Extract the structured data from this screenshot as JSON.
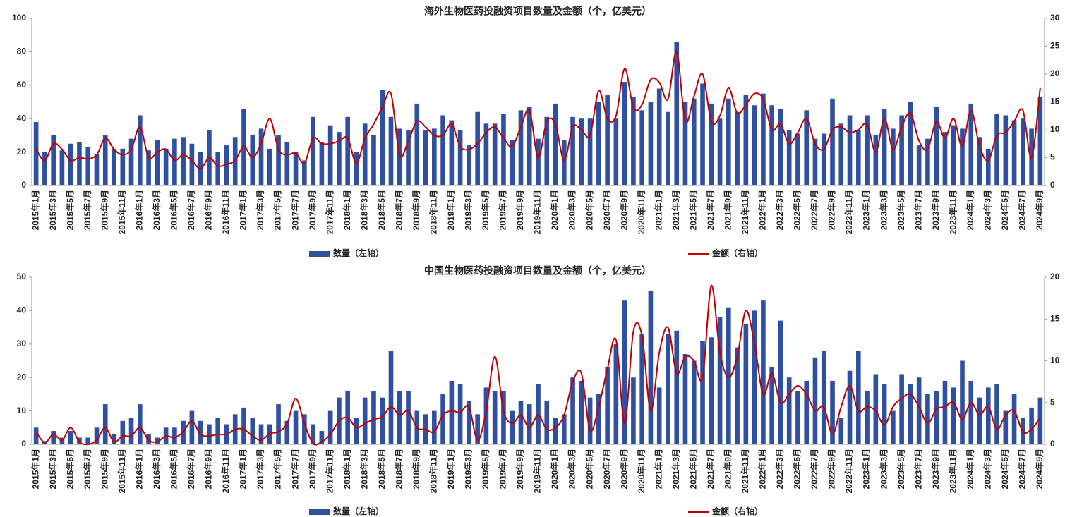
{
  "chart_data": [
    {
      "type": "bar-line",
      "title": "海外生物医药投融资项目数量及金额（个，亿美元）",
      "categories": [
        "2015年1月",
        null,
        "2015年3月",
        null,
        "2015年5月",
        null,
        "2015年7月",
        null,
        "2015年9月",
        null,
        "2015年11月",
        null,
        "2016年1月",
        null,
        "2016年3月",
        null,
        "2016年5月",
        null,
        "2016年7月",
        null,
        "2016年9月",
        null,
        "2016年11月",
        null,
        "2017年1月",
        null,
        "2017年3月",
        null,
        "2017年5月",
        null,
        "2017年7月",
        null,
        "2017年9月",
        null,
        "2017年11月",
        null,
        "2018年1月",
        null,
        "2018年3月",
        null,
        "2018年5月",
        null,
        "2018年7月",
        null,
        "2018年9月",
        null,
        "2018年11月",
        null,
        "2019年1月",
        null,
        "2019年3月",
        null,
        "2019年5月",
        null,
        "2019年7月",
        null,
        "2019年9月",
        null,
        "2019年11月",
        null,
        "2020年1月",
        null,
        "2020年3月",
        null,
        "2020年5月",
        null,
        "2020年7月",
        null,
        "2020年9月",
        null,
        "2020年11月",
        null,
        "2021年1月",
        null,
        "2021年3月",
        null,
        "2021年5月",
        null,
        "2021年7月",
        null,
        "2021年9月",
        null,
        "2021年11月",
        null,
        "2022年1月",
        null,
        "2022年3月",
        null,
        "2022年5月",
        null,
        "2022年7月",
        null,
        "2022年9月",
        null,
        "2022年11月",
        null,
        "2023年1月",
        null,
        "2023年3月",
        null,
        "2023年5月",
        null,
        "2023年7月",
        null,
        "2023年9月",
        null,
        "2023年11月",
        null,
        "2024年1月",
        null,
        "2024年3月",
        null,
        "2024年5月",
        null,
        "2024年7月",
        null,
        "2024年9月"
      ],
      "series": [
        {
          "name": "数量（左轴）",
          "type": "bar",
          "color": "#2f4fa0",
          "values": [
            38,
            20,
            30,
            21,
            25,
            26,
            23,
            19,
            30,
            22,
            22,
            28,
            42,
            21,
            27,
            22,
            28,
            29,
            25,
            20,
            33,
            20,
            24,
            29,
            46,
            30,
            34,
            22,
            30,
            26,
            20,
            15,
            41,
            26,
            36,
            32,
            41,
            20,
            37,
            30,
            57,
            41,
            34,
            33,
            49,
            33,
            34,
            42,
            39,
            33,
            24,
            44,
            37,
            37,
            43,
            27,
            45,
            47,
            28,
            41,
            49,
            27,
            41,
            40,
            40,
            50,
            54,
            40,
            62,
            53,
            45,
            50,
            58,
            44,
            86,
            50,
            52,
            61,
            49,
            40,
            52,
            44,
            54,
            48,
            55,
            48,
            46,
            33,
            31,
            45,
            28,
            31,
            52,
            37,
            42,
            33,
            42,
            30,
            46,
            34,
            42,
            50,
            24,
            28,
            47,
            32,
            36,
            34,
            49,
            29,
            22,
            43,
            42,
            39,
            40,
            34,
            53
          ]
        },
        {
          "name": "金额（右轴）",
          "type": "line",
          "axis": "y2",
          "color": "#c00000",
          "values": [
            6.5,
            4.5,
            7.5,
            6.5,
            4.5,
            5,
            4.8,
            5.5,
            8.5,
            6.5,
            5.5,
            6.5,
            10.5,
            5,
            6,
            6.5,
            4.5,
            5.5,
            4.5,
            3,
            5,
            3.5,
            3.8,
            4.5,
            7,
            5,
            7.5,
            12,
            6.5,
            5.5,
            5.8,
            4,
            8.5,
            7.5,
            7.5,
            8,
            8.5,
            4,
            8.5,
            11,
            14,
            16.5,
            5.5,
            8,
            11.5,
            10.5,
            9,
            9,
            11,
            7,
            6.5,
            7.5,
            9.5,
            10.5,
            8.5,
            7,
            10.5,
            13.5,
            5,
            11.5,
            11,
            4.5,
            10.5,
            10,
            9,
            17,
            12,
            12.5,
            21,
            14,
            14.5,
            19,
            18.5,
            15.5,
            24,
            11.5,
            16,
            20,
            11.5,
            12.5,
            17.5,
            13,
            14.5,
            16.5,
            15.5,
            10,
            11,
            7.5,
            9.5,
            12,
            7.5,
            6.5,
            10,
            10.5,
            9.5,
            10,
            11,
            6,
            12,
            6.5,
            10.5,
            13,
            8,
            6.5,
            11.5,
            8.5,
            12,
            7,
            13.5,
            7,
            4.5,
            9,
            9.5,
            11.5,
            13.5,
            5,
            17.5
          ]
        }
      ],
      "ylim": [
        0,
        100
      ],
      "yticks": [
        0,
        20,
        40,
        60,
        80,
        100
      ],
      "y2lim": [
        0,
        30
      ],
      "y2ticks": [
        0,
        5,
        10,
        15,
        20,
        25,
        30
      ]
    },
    {
      "type": "bar-line",
      "title": "中国生物医药投融资项目数量及金额（个，亿美元）",
      "categories": [
        "2015年1月",
        null,
        "2015年3月",
        null,
        "2015年5月",
        null,
        "2015年7月",
        null,
        "2015年9月",
        null,
        "2015年11月",
        null,
        "2016年1月",
        null,
        "2016年3月",
        null,
        "2016年5月",
        null,
        "2016年7月",
        null,
        "2016年9月",
        null,
        "2016年11月",
        null,
        "2017年1月",
        null,
        "2017年3月",
        null,
        "2017年5月",
        null,
        "2017年7月",
        null,
        "2017年9月",
        null,
        "2017年11月",
        null,
        "2018年1月",
        null,
        "2018年3月",
        null,
        "2018年5月",
        null,
        "2018年7月",
        null,
        "2018年9月",
        null,
        "2018年11月",
        null,
        "2019年1月",
        null,
        "2019年3月",
        null,
        "2019年5月",
        null,
        "2019年7月",
        null,
        "2019年9月",
        null,
        "2019年11月",
        null,
        "2020年1月",
        null,
        "2020年3月",
        null,
        "2020年5月",
        null,
        "2020年7月",
        null,
        "2020年9月",
        null,
        "2020年11月",
        null,
        "2021年1月",
        null,
        "2021年3月",
        null,
        "2021年5月",
        null,
        "2021年7月",
        null,
        "2021年9月",
        null,
        "2021年11月",
        null,
        "2022年1月",
        null,
        "2022年3月",
        null,
        "2022年5月",
        null,
        "2022年7月",
        null,
        "2022年9月",
        null,
        "2022年11月",
        null,
        "2023年1月",
        null,
        "2023年3月",
        null,
        "2023年5月",
        null,
        "2023年7月",
        null,
        "2023年9月",
        null,
        "2023年11月",
        null,
        "2024年1月",
        null,
        "2024年3月",
        null,
        "2024年5月",
        null,
        "2024年7月",
        null,
        "2024年9月"
      ],
      "series": [
        {
          "name": "数量（左轴）",
          "type": "bar",
          "color": "#2f4fa0",
          "values": [
            5,
            1,
            4,
            2,
            4,
            2,
            2,
            5,
            12,
            3,
            7,
            8,
            12,
            3,
            2,
            5,
            5,
            7,
            10,
            7,
            6,
            8,
            6,
            9,
            11,
            8,
            6,
            6,
            12,
            7,
            10,
            9,
            6,
            4,
            10,
            14,
            16,
            8,
            14,
            16,
            14,
            28,
            16,
            16,
            10,
            9,
            10,
            15,
            19,
            18,
            13,
            9,
            17,
            16,
            16,
            10,
            13,
            12,
            18,
            13,
            8,
            9,
            20,
            19,
            14,
            15,
            23,
            30,
            43,
            20,
            33,
            46,
            17,
            33,
            34,
            27,
            25,
            31,
            32,
            38,
            41,
            29,
            36,
            40,
            43,
            23,
            37,
            20,
            16,
            19,
            26,
            28,
            19,
            8,
            22,
            28,
            16,
            21,
            18,
            10,
            21,
            18,
            20,
            15,
            16,
            19,
            17,
            25,
            19,
            14,
            17,
            18,
            10,
            15,
            8,
            11,
            14
          ]
        },
        {
          "name": "金额（右轴）",
          "type": "line",
          "axis": "y2",
          "color": "#c00000",
          "values": [
            1.5,
            0.2,
            1.2,
            0.5,
            2,
            0.3,
            0,
            0.5,
            2,
            0.3,
            1,
            1,
            2,
            0.5,
            0.3,
            1,
            0.8,
            1.5,
            2.8,
            1.2,
            1,
            1.2,
            1.2,
            1.8,
            1.8,
            1,
            0.5,
            1.3,
            1.5,
            2.5,
            5.5,
            2.5,
            0.1,
            0.3,
            1.2,
            2.8,
            3.2,
            2,
            2.5,
            3,
            3.3,
            4.5,
            3.5,
            4,
            2,
            1.8,
            1.5,
            3.5,
            4,
            3.8,
            4.5,
            0.5,
            4,
            10.5,
            4,
            2.5,
            3.5,
            2,
            3.5,
            1.8,
            2,
            3.5,
            7.5,
            8.5,
            1.7,
            4.5,
            9,
            12.5,
            2.5,
            13.5,
            13,
            4,
            11,
            14,
            8.5,
            10.5,
            10,
            8,
            19,
            11,
            8,
            10.5,
            16,
            12,
            6,
            8.5,
            5,
            6,
            7,
            6,
            4,
            4.5,
            1.2,
            4.5,
            7,
            4,
            4.5,
            4,
            2.3,
            4.5,
            5.5,
            6,
            4.5,
            2.5,
            4.2,
            4.5,
            5,
            3,
            5,
            3.5,
            4.5,
            1.8,
            3.5,
            4,
            1.5,
            1.8,
            3.2
          ]
        }
      ],
      "ylim": [
        0,
        50
      ],
      "yticks": [
        0,
        10,
        20,
        30,
        40,
        50
      ],
      "y2lim": [
        0,
        20
      ],
      "y2ticks": [
        0,
        5,
        10,
        15,
        20
      ]
    }
  ]
}
